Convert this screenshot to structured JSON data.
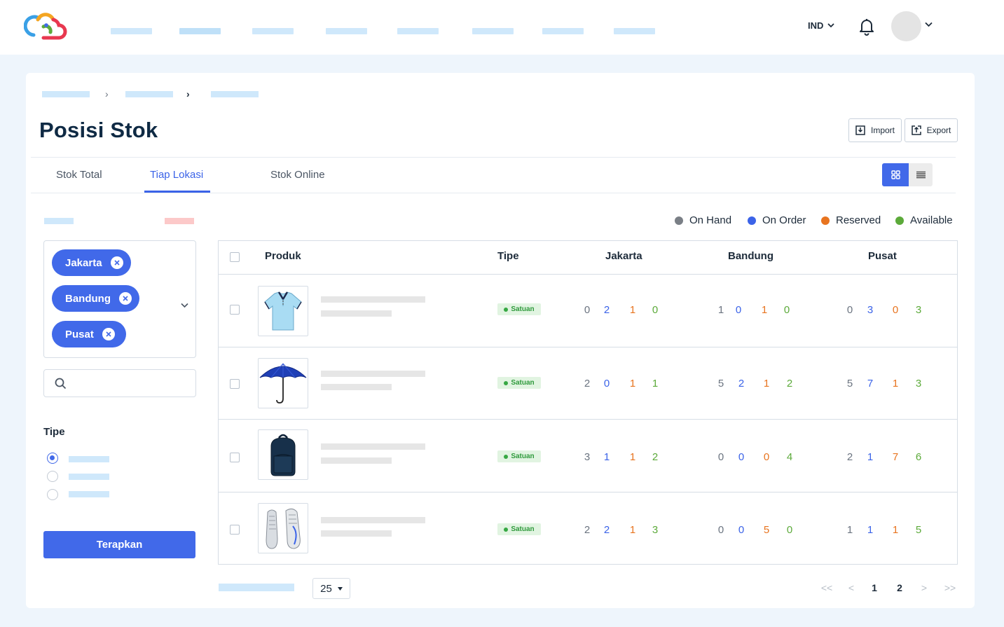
{
  "header": {
    "language": "IND",
    "colors": {
      "accent": "#4169e9",
      "placeholder": "#cfe8fb"
    }
  },
  "page": {
    "title": "Posisi Stok",
    "import_label": "Import",
    "export_label": "Export"
  },
  "tabs": [
    {
      "label": "Stok Total"
    },
    {
      "label": "Tiap Lokasi"
    },
    {
      "label": "Stok Online"
    }
  ],
  "filters": {
    "locations": [
      "Jakarta",
      "Bandung",
      "Pusat"
    ],
    "search_value": "",
    "tipe_label": "Tipe",
    "apply_label": "Terapkan"
  },
  "legend": [
    {
      "label": "On Hand",
      "color": "#7a7f86"
    },
    {
      "label": "On Order",
      "color": "#3b63e8"
    },
    {
      "label": "Reserved",
      "color": "#e8741f"
    },
    {
      "label": "Available",
      "color": "#5caa3a"
    }
  ],
  "table": {
    "headers": {
      "produk": "Produk",
      "tipe": "Tipe",
      "loc1": "Jakarta",
      "loc2": "Bandung",
      "loc3": "Pusat"
    },
    "rows": [
      {
        "image": "polo-shirt-icon",
        "tipe": "Satuan",
        "jakarta": [
          "0",
          "2",
          "1",
          "0"
        ],
        "bandung": [
          "1",
          "0",
          "1",
          "0"
        ],
        "pusat": [
          "0",
          "3",
          "0",
          "3"
        ]
      },
      {
        "image": "umbrella-icon",
        "tipe": "Satuan",
        "jakarta": [
          "2",
          "0",
          "1",
          "1"
        ],
        "bandung": [
          "5",
          "2",
          "1",
          "2"
        ],
        "pusat": [
          "5",
          "7",
          "1",
          "3"
        ]
      },
      {
        "image": "backpack-icon",
        "tipe": "Satuan",
        "jakarta": [
          "3",
          "1",
          "1",
          "2"
        ],
        "bandung": [
          "0",
          "0",
          "0",
          "4"
        ],
        "pusat": [
          "2",
          "1",
          "7",
          "6"
        ]
      },
      {
        "image": "sneakers-icon",
        "tipe": "Satuan",
        "jakarta": [
          "2",
          "2",
          "1",
          "3"
        ],
        "bandung": [
          "0",
          "0",
          "5",
          "0"
        ],
        "pusat": [
          "1",
          "1",
          "1",
          "5"
        ]
      }
    ]
  },
  "pagination": {
    "per_page": "25",
    "first": "<<",
    "prev": "<",
    "pages": [
      "1",
      "2"
    ],
    "next": ">",
    "last": ">>"
  }
}
